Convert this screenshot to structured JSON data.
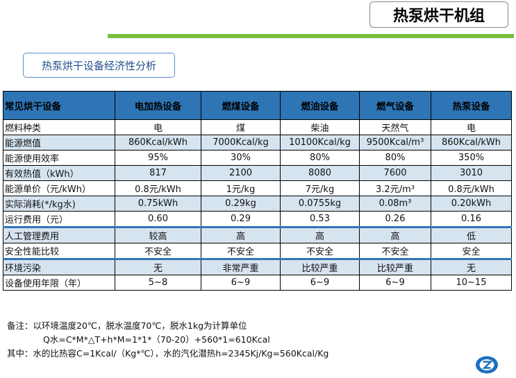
{
  "header": {
    "title": "热泵烘干机组",
    "subtitle": "热泵烘干设备经济性分析"
  },
  "table": {
    "headers": [
      "常见烘干设备",
      "电加热设备",
      "燃煤设备",
      "燃油设备",
      "燃气设备",
      "热泵设备"
    ],
    "rows": [
      {
        "label": "燃料种类",
        "cells": [
          "电",
          "煤",
          "柴油",
          "天然气",
          "电"
        ]
      },
      {
        "label": "能源燃值",
        "cells": [
          "860Kcal/kWh",
          "7000Kcal/kg",
          "10100Kcal/kg",
          "9500Kcal/m³",
          "860Kcal/kWh"
        ]
      },
      {
        "label": "能源使用效率",
        "cells": [
          "95%",
          "30%",
          "80%",
          "80%",
          "350%"
        ]
      },
      {
        "label": "有效热值（kWh）",
        "cells": [
          "817",
          "2100",
          "8080",
          "7600",
          "3010"
        ]
      },
      {
        "label": "能源单价（元/kWh）",
        "cells": [
          "0.8元/kWh",
          "1元/kg",
          "7元/kg",
          "3.2元/m³",
          "0.8元/kWh"
        ]
      },
      {
        "label": "实际消耗(*/kg水)",
        "cells": [
          "0.75kWh",
          "0.29kg",
          "0.0755kg",
          "0.08m³",
          "0.20kWh"
        ]
      },
      {
        "label": "运行费用（元）",
        "cells": [
          "0.60",
          "0.29",
          "0.53",
          "0.26",
          "0.16"
        ]
      },
      {
        "label": "人工管理费用",
        "cells": [
          "较高",
          "高",
          "高",
          "高",
          "低"
        ]
      },
      {
        "label": "安全性能比较",
        "cells": [
          "不安全",
          "不安全",
          "不安全",
          "不安全",
          "安全"
        ]
      },
      {
        "label": "环境污染",
        "cells": [
          "无",
          "非常严重",
          "比较严重",
          "比较严重",
          "无"
        ]
      },
      {
        "label": "设备使用年限（年）",
        "cells": [
          "5~8",
          "6~9",
          "6~9",
          "6~9",
          "10~15"
        ]
      }
    ]
  },
  "notes": {
    "line1": "备注：以环境温度20℃，脱水温度70℃，脱水1kg为计算单位",
    "line2": "Q水=C*M*△T+h*M=1*1*（70-20）+560*1=610Kcal",
    "line3": "其中：水的比热容C=1Kcal/（Kg*℃），水的汽化潜热h=2345Kj/Kg=560Kcal/Kg"
  },
  "logo": {
    "icon": "brand-logo-icon",
    "color": "#1e6fc0"
  },
  "colors": {
    "header_blue": "#2e75b6",
    "alt_row": "#d6e4f0",
    "green_bar": "#7bbf3f"
  }
}
